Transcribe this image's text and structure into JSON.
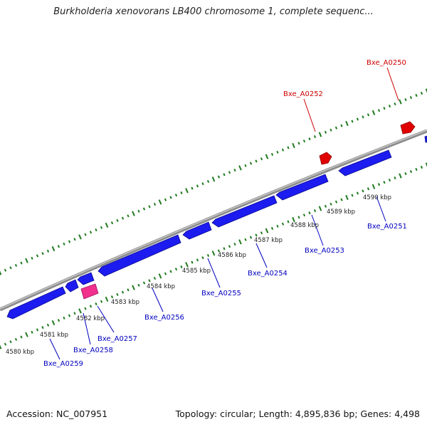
{
  "title": "Burkholderia xenovorans LB400 chromosome 1, complete sequenc...",
  "accession": "Accession: NC_007951",
  "summary": "Topology: circular; Length: 4,895,836 bp; Genes: 4,498",
  "colors": {
    "backbone": "#8c8c8c",
    "gene_reverse": "#1c1cf0",
    "gene_forward": "#e00000",
    "rna_gene": "#f0308c",
    "tick": "#1f7a1f",
    "label_reverse": "#0000c0",
    "label_forward": "#cc0000",
    "kbp_label": "#222222"
  },
  "kbp_labels": [
    "4580 kbp",
    "4581 kbp",
    "4582 kbp",
    "4583 kbp",
    "4584 kbp",
    "4585 kbp",
    "4586 kbp",
    "4587 kbp",
    "4588 kbp",
    "4589 kbp",
    "4590 kbp"
  ],
  "genes_reverse": [
    {
      "label": "Bxe_A0251"
    },
    {
      "label": "Bxe_A0253"
    },
    {
      "label": "Bxe_A0254"
    },
    {
      "label": "Bxe_A0255"
    },
    {
      "label": "Bxe_A0256"
    },
    {
      "label": "Bxe_A0257"
    },
    {
      "label": "Bxe_A0258"
    },
    {
      "label": "Bxe_A0259"
    }
  ],
  "genes_forward": [
    {
      "label": "Bxe_A0250"
    },
    {
      "label": "Bxe_A0252"
    }
  ]
}
